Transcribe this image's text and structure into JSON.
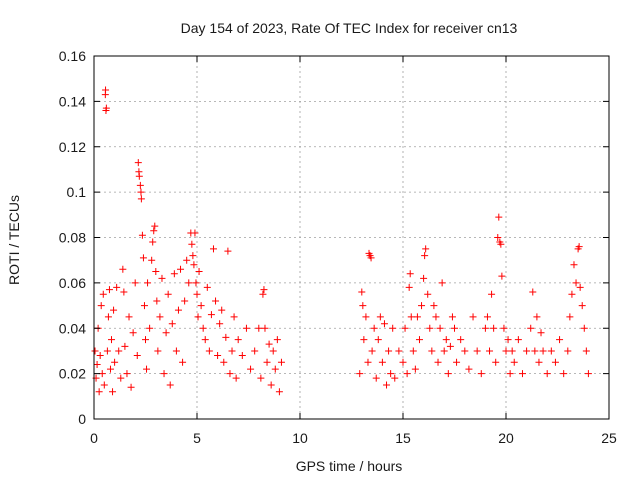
{
  "chart_data": {
    "type": "scatter",
    "title": "Day 154 of 2023, Rate Of TEC Index for receiver cn13",
    "xlabel": "GPS time / hours",
    "ylabel": "ROTI / TECUs",
    "xlim": [
      0,
      25
    ],
    "ylim": [
      0,
      0.16
    ],
    "xticks": [
      "0",
      "5",
      "10",
      "15",
      "20",
      "25"
    ],
    "yticks": [
      "0",
      "0.02",
      "0.04",
      "0.06",
      "0.08",
      "0.1",
      "0.12",
      "0.14",
      "0.16"
    ],
    "grid": true,
    "marker": "+",
    "color": "#ff0000",
    "series": [
      {
        "points": [
          [
            0.05,
            0.03
          ],
          [
            0.1,
            0.018
          ],
          [
            0.15,
            0.024
          ],
          [
            0.2,
            0.04
          ],
          [
            0.25,
            0.012
          ],
          [
            0.3,
            0.028
          ],
          [
            0.35,
            0.05
          ],
          [
            0.4,
            0.02
          ],
          [
            0.45,
            0.055
          ],
          [
            0.5,
            0.015
          ],
          [
            0.55,
            0.143
          ],
          [
            0.56,
            0.145
          ],
          [
            0.58,
            0.136
          ],
          [
            0.6,
            0.137
          ],
          [
            0.65,
            0.03
          ],
          [
            0.7,
            0.045
          ],
          [
            0.75,
            0.057
          ],
          [
            0.8,
            0.022
          ],
          [
            0.85,
            0.035
          ],
          [
            0.9,
            0.012
          ],
          [
            0.95,
            0.048
          ],
          [
            1.0,
            0.025
          ],
          [
            1.1,
            0.058
          ],
          [
            1.2,
            0.03
          ],
          [
            1.3,
            0.018
          ],
          [
            1.4,
            0.066
          ],
          [
            1.45,
            0.056
          ],
          [
            1.5,
            0.032
          ],
          [
            1.6,
            0.02
          ],
          [
            1.7,
            0.045
          ],
          [
            1.8,
            0.014
          ],
          [
            1.9,
            0.038
          ],
          [
            2.0,
            0.06
          ],
          [
            2.1,
            0.028
          ],
          [
            2.15,
            0.113
          ],
          [
            2.18,
            0.109
          ],
          [
            2.2,
            0.107
          ],
          [
            2.25,
            0.103
          ],
          [
            2.28,
            0.1
          ],
          [
            2.3,
            0.097
          ],
          [
            2.35,
            0.081
          ],
          [
            2.4,
            0.071
          ],
          [
            2.45,
            0.05
          ],
          [
            2.5,
            0.035
          ],
          [
            2.55,
            0.022
          ],
          [
            2.6,
            0.06
          ],
          [
            2.7,
            0.04
          ],
          [
            2.8,
            0.07
          ],
          [
            2.85,
            0.078
          ],
          [
            2.9,
            0.083
          ],
          [
            2.95,
            0.085
          ],
          [
            3.0,
            0.065
          ],
          [
            3.05,
            0.052
          ],
          [
            3.1,
            0.03
          ],
          [
            3.2,
            0.045
          ],
          [
            3.3,
            0.062
          ],
          [
            3.4,
            0.02
          ],
          [
            3.5,
            0.038
          ],
          [
            3.6,
            0.055
          ],
          [
            3.7,
            0.015
          ],
          [
            3.8,
            0.042
          ],
          [
            3.9,
            0.064
          ],
          [
            4.0,
            0.03
          ],
          [
            4.1,
            0.048
          ],
          [
            4.2,
            0.066
          ],
          [
            4.3,
            0.025
          ],
          [
            4.4,
            0.052
          ],
          [
            4.5,
            0.07
          ],
          [
            4.6,
            0.06
          ],
          [
            4.7,
            0.082
          ],
          [
            4.75,
            0.077
          ],
          [
            4.8,
            0.072
          ],
          [
            4.85,
            0.068
          ],
          [
            4.9,
            0.082
          ],
          [
            4.95,
            0.06
          ],
          [
            5.0,
            0.055
          ],
          [
            5.05,
            0.045
          ],
          [
            5.1,
            0.065
          ],
          [
            5.2,
            0.05
          ],
          [
            5.3,
            0.04
          ],
          [
            5.4,
            0.035
          ],
          [
            5.5,
            0.058
          ],
          [
            5.6,
            0.03
          ],
          [
            5.7,
            0.046
          ],
          [
            5.8,
            0.075
          ],
          [
            5.9,
            0.052
          ],
          [
            6.0,
            0.028
          ],
          [
            6.1,
            0.042
          ],
          [
            6.2,
            0.048
          ],
          [
            6.3,
            0.025
          ],
          [
            6.4,
            0.036
          ],
          [
            6.5,
            0.074
          ],
          [
            6.6,
            0.02
          ],
          [
            6.7,
            0.03
          ],
          [
            6.8,
            0.045
          ],
          [
            6.9,
            0.018
          ],
          [
            7.0,
            0.035
          ],
          [
            7.2,
            0.028
          ],
          [
            7.4,
            0.04
          ],
          [
            7.6,
            0.022
          ],
          [
            7.8,
            0.03
          ],
          [
            8.0,
            0.04
          ],
          [
            8.1,
            0.018
          ],
          [
            8.2,
            0.055
          ],
          [
            8.25,
            0.057
          ],
          [
            8.3,
            0.04
          ],
          [
            8.4,
            0.025
          ],
          [
            8.5,
            0.033
          ],
          [
            8.6,
            0.015
          ],
          [
            8.7,
            0.03
          ],
          [
            8.8,
            0.022
          ],
          [
            8.9,
            0.035
          ],
          [
            9.0,
            0.012
          ],
          [
            9.1,
            0.025
          ],
          [
            12.9,
            0.02
          ],
          [
            13.0,
            0.056
          ],
          [
            13.05,
            0.05
          ],
          [
            13.1,
            0.035
          ],
          [
            13.2,
            0.045
          ],
          [
            13.3,
            0.025
          ],
          [
            13.35,
            0.073
          ],
          [
            13.4,
            0.072
          ],
          [
            13.45,
            0.071
          ],
          [
            13.5,
            0.03
          ],
          [
            13.6,
            0.04
          ],
          [
            13.7,
            0.018
          ],
          [
            13.8,
            0.035
          ],
          [
            13.9,
            0.045
          ],
          [
            14.0,
            0.025
          ],
          [
            14.1,
            0.042
          ],
          [
            14.2,
            0.015
          ],
          [
            14.3,
            0.03
          ],
          [
            14.4,
            0.02
          ],
          [
            14.5,
            0.04
          ],
          [
            14.6,
            0.018
          ],
          [
            14.8,
            0.03
          ],
          [
            15.0,
            0.025
          ],
          [
            15.1,
            0.04
          ],
          [
            15.2,
            0.02
          ],
          [
            15.3,
            0.058
          ],
          [
            15.35,
            0.064
          ],
          [
            15.4,
            0.045
          ],
          [
            15.5,
            0.03
          ],
          [
            15.6,
            0.022
          ],
          [
            15.7,
            0.045
          ],
          [
            15.8,
            0.035
          ],
          [
            15.9,
            0.05
          ],
          [
            16.0,
            0.062
          ],
          [
            16.05,
            0.072
          ],
          [
            16.1,
            0.075
          ],
          [
            16.2,
            0.055
          ],
          [
            16.3,
            0.04
          ],
          [
            16.4,
            0.03
          ],
          [
            16.5,
            0.05
          ],
          [
            16.6,
            0.045
          ],
          [
            16.7,
            0.025
          ],
          [
            16.8,
            0.04
          ],
          [
            16.9,
            0.06
          ],
          [
            17.0,
            0.03
          ],
          [
            17.1,
            0.035
          ],
          [
            17.2,
            0.02
          ],
          [
            17.3,
            0.032
          ],
          [
            17.4,
            0.045
          ],
          [
            17.5,
            0.04
          ],
          [
            17.6,
            0.025
          ],
          [
            17.8,
            0.035
          ],
          [
            18.0,
            0.03
          ],
          [
            18.2,
            0.022
          ],
          [
            18.4,
            0.045
          ],
          [
            18.6,
            0.03
          ],
          [
            18.8,
            0.02
          ],
          [
            19.0,
            0.04
          ],
          [
            19.1,
            0.045
          ],
          [
            19.2,
            0.03
          ],
          [
            19.3,
            0.055
          ],
          [
            19.4,
            0.04
          ],
          [
            19.5,
            0.025
          ],
          [
            19.6,
            0.08
          ],
          [
            19.65,
            0.089
          ],
          [
            19.7,
            0.078
          ],
          [
            19.75,
            0.077
          ],
          [
            19.8,
            0.063
          ],
          [
            19.9,
            0.04
          ],
          [
            20.0,
            0.03
          ],
          [
            20.1,
            0.035
          ],
          [
            20.2,
            0.02
          ],
          [
            20.3,
            0.03
          ],
          [
            20.4,
            0.025
          ],
          [
            20.6,
            0.035
          ],
          [
            20.8,
            0.02
          ],
          [
            21.0,
            0.03
          ],
          [
            21.2,
            0.04
          ],
          [
            21.3,
            0.056
          ],
          [
            21.4,
            0.03
          ],
          [
            21.5,
            0.045
          ],
          [
            21.6,
            0.025
          ],
          [
            21.7,
            0.038
          ],
          [
            21.8,
            0.03
          ],
          [
            22.0,
            0.02
          ],
          [
            22.2,
            0.03
          ],
          [
            22.4,
            0.025
          ],
          [
            22.6,
            0.035
          ],
          [
            22.8,
            0.02
          ],
          [
            23.0,
            0.03
          ],
          [
            23.1,
            0.045
          ],
          [
            23.2,
            0.055
          ],
          [
            23.3,
            0.068
          ],
          [
            23.4,
            0.06
          ],
          [
            23.5,
            0.075
          ],
          [
            23.55,
            0.076
          ],
          [
            23.6,
            0.058
          ],
          [
            23.7,
            0.05
          ],
          [
            23.8,
            0.04
          ],
          [
            23.9,
            0.03
          ],
          [
            24.0,
            0.02
          ]
        ]
      }
    ]
  }
}
